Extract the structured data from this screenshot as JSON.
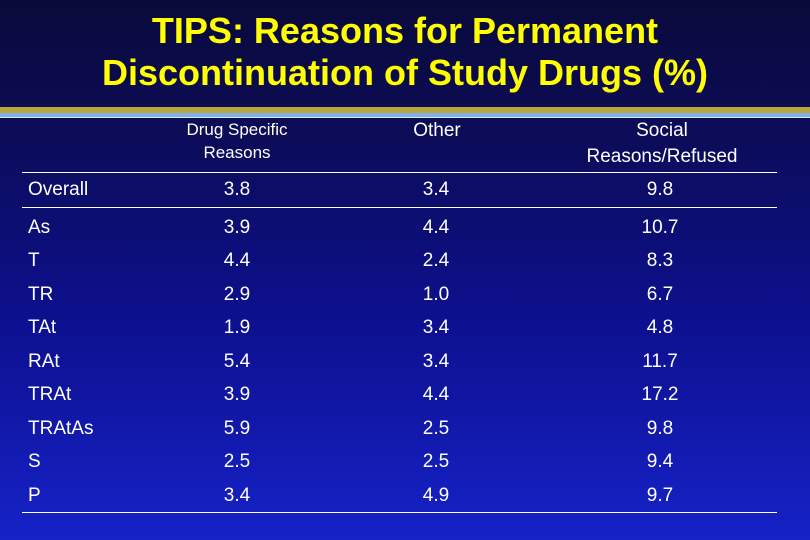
{
  "title": {
    "line1": "TIPS: Reasons for Permanent",
    "line2": "Discontinuation of Study Drugs (%)"
  },
  "table": {
    "headers": {
      "col1_line1": "Drug Specific",
      "col1_line2": "Reasons",
      "col2": "Other",
      "col3_line1": "Social",
      "col3_line2": "Reasons/Refused"
    },
    "overall": {
      "label": "Overall",
      "drug": "3.8",
      "other": "3.4",
      "social": "9.8"
    },
    "rows": [
      {
        "label": "As",
        "drug": "3.9",
        "other": "4.4",
        "social": "10.7"
      },
      {
        "label": "T",
        "drug": "4.4",
        "other": "2.4",
        "social": "8.3"
      },
      {
        "label": "TR",
        "drug": "2.9",
        "other": "1.0",
        "social": "6.7"
      },
      {
        "label": "TAt",
        "drug": "1.9",
        "other": "3.4",
        "social": "4.8"
      },
      {
        "label": "RAt",
        "drug": "5.4",
        "other": "3.4",
        "social": "11.7"
      },
      {
        "label": "TRAt",
        "drug": "3.9",
        "other": "4.4",
        "social": "17.2"
      },
      {
        "label": "TRAtAs",
        "drug": "5.9",
        "other": "2.5",
        "social": "9.8"
      },
      {
        "label": "S",
        "drug": "2.5",
        "other": "2.5",
        "social": "9.4"
      },
      {
        "label": "P",
        "drug": "3.4",
        "other": "4.9",
        "social": "9.7"
      }
    ]
  }
}
